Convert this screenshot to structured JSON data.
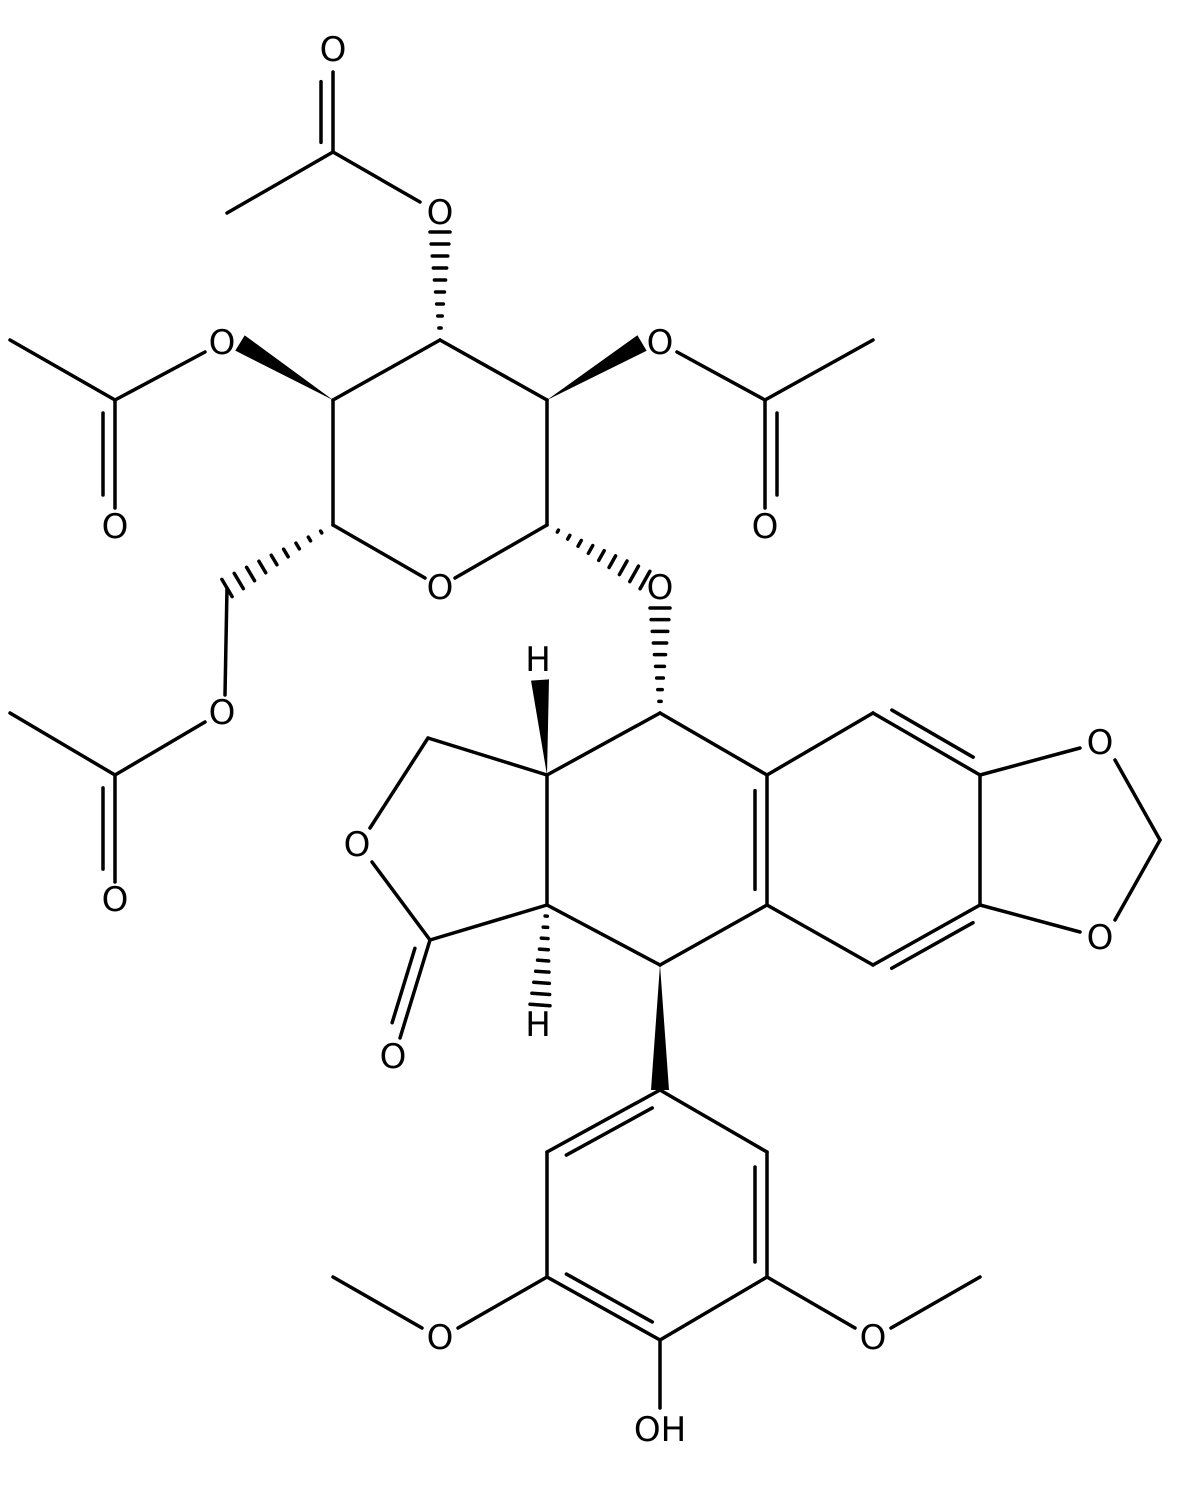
{
  "atoms": [
    {
      "label": "O"
    },
    {
      "label": "O"
    },
    {
      "label": "O"
    },
    {
      "label": "O"
    },
    {
      "label": "O"
    },
    {
      "label": "O"
    },
    {
      "label": "O"
    },
    {
      "label": "O"
    },
    {
      "label": "H"
    },
    {
      "label": "O"
    },
    {
      "label": "O"
    },
    {
      "label": "O"
    },
    {
      "label": "O"
    },
    {
      "label": "O"
    },
    {
      "label": "H"
    },
    {
      "label": "O"
    },
    {
      "label": "O"
    },
    {
      "label": "O"
    },
    {
      "label": "OH"
    }
  ]
}
